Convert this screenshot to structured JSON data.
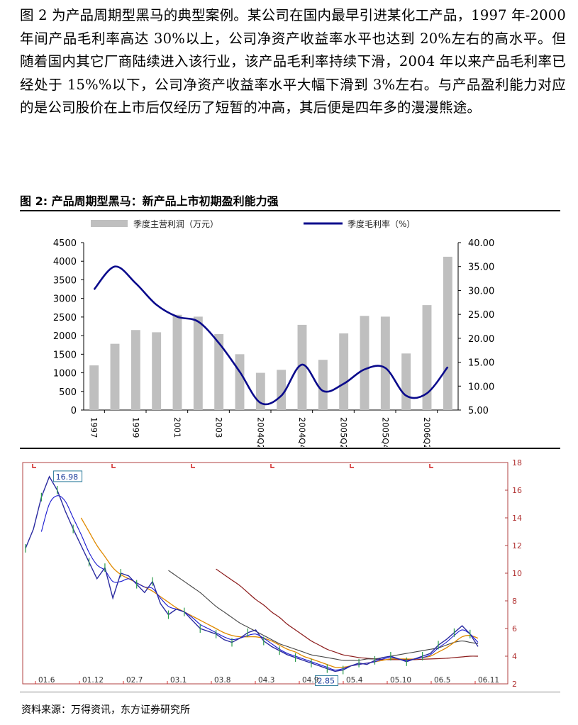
{
  "paragraph": "图 2 为产品周期型黑马的典型案例。某公司在国内最早引进某化工产品，1997 年-2000 年间产品毛利率高达 30%以上，公司净资产收益率水平也达到 20%左右的高水平。但随着国内其它厂商陆续进入该行业，该产品毛利率持续下滑，2004 年以来产品毛利率已经处于 15%%以下，公司净资产收益率水平大幅下滑到 3%左右。与产品盈利能力对应的是公司股价在上市后仅经历了短暂的冲高，其后便是四年多的漫漫熊途。",
  "figure_title": "图 2:  产品周期型黑马：新产品上市初期盈利能力强",
  "source": "资料来源：万得资讯，东方证券研究所",
  "colors": {
    "bar": "#bfbfbf",
    "line": "#0a0a8c",
    "price": "#2a2aa0"
  },
  "chart_data": [
    {
      "type": "bar",
      "series": [
        {
          "name": "季度主营利润（万元）",
          "kind": "bar",
          "axis": "left",
          "values": [
            1200,
            1780,
            2150,
            2090,
            2560,
            2510,
            2040,
            1500,
            1000,
            1080,
            2290,
            1350,
            2060,
            2530,
            2510,
            1520,
            2820,
            4120
          ]
        },
        {
          "name": "季度毛利率（%）",
          "kind": "line",
          "axis": "right",
          "values": [
            30.2,
            35.0,
            31.5,
            27.0,
            24.5,
            23.5,
            19.0,
            13.0,
            6.5,
            8.0,
            14.5,
            9.0,
            10.5,
            13.5,
            13.8,
            8.0,
            8.5,
            14.0
          ]
        }
      ],
      "x_tick_labels": [
        "1997",
        "1999",
        "2001",
        "2003",
        "2004Q2",
        "2004Q4",
        "2005Q2",
        "2005Q4",
        "2006Q2"
      ],
      "y_left_ticks": [
        "4500",
        "4000",
        "3500",
        "3000",
        "2500",
        "2000",
        "1500",
        "1000",
        "500",
        "0"
      ],
      "y_right_ticks": [
        "40.00",
        "35.00",
        "30.00",
        "25.00",
        "20.00",
        "15.00",
        "10.00",
        "5.00"
      ],
      "ylim_left": [
        0,
        4500
      ],
      "ylim_right": [
        5,
        40
      ],
      "legend_position": "top"
    },
    {
      "type": "line",
      "series": [
        {
          "name": "price",
          "values": [
            11.8,
            13.2,
            15.5,
            16.98,
            16.0,
            14.5,
            13.2,
            12.0,
            10.8,
            9.6,
            10.4,
            8.2,
            10.0,
            9.8,
            9.2,
            8.6,
            9.4,
            7.8,
            7.0,
            7.4,
            7.2,
            6.6,
            6.0,
            5.8,
            5.6,
            5.2,
            5.0,
            5.3,
            5.7,
            5.9,
            5.1,
            4.7,
            4.4,
            4.1,
            3.9,
            3.7,
            3.5,
            3.3,
            3.1,
            2.9,
            3.0,
            3.3,
            3.5,
            3.4,
            3.7,
            3.9,
            4.0,
            3.8,
            3.6,
            3.8,
            4.0,
            4.2,
            4.8,
            5.2,
            5.7,
            6.2,
            5.6,
            4.7
          ]
        },
        {
          "name": "ma_short",
          "values": [
            null,
            null,
            13.0,
            15.0,
            15.6,
            15.2,
            14.0,
            12.8,
            11.5,
            10.6,
            10.2,
            9.4,
            9.4,
            9.6,
            9.3,
            9.0,
            8.9,
            8.2,
            7.6,
            7.4,
            7.2,
            6.8,
            6.3,
            6.0,
            5.7,
            5.4,
            5.2,
            5.3,
            5.5,
            5.6,
            5.3,
            4.9,
            4.5,
            4.2,
            4.0,
            3.8,
            3.6,
            3.4,
            3.2,
            3.0,
            3.1,
            3.3,
            3.4,
            3.5,
            3.6,
            3.8,
            3.9,
            3.8,
            3.7,
            3.8,
            3.9,
            4.1,
            4.6,
            5.0,
            5.5,
            5.9,
            5.6,
            5.0
          ]
        },
        {
          "name": "ma_mid",
          "values": [
            null,
            null,
            null,
            null,
            null,
            null,
            null,
            14.0,
            13.0,
            12.0,
            11.2,
            10.4,
            9.9,
            9.6,
            9.3,
            9.0,
            8.7,
            8.3,
            7.9,
            7.5,
            7.2,
            6.9,
            6.6,
            6.3,
            6.0,
            5.7,
            5.5,
            5.4,
            5.4,
            5.4,
            5.3,
            5.1,
            4.8,
            4.5,
            4.3,
            4.0,
            3.8,
            3.6,
            3.4,
            3.2,
            3.2,
            3.3,
            3.4,
            3.5,
            3.6,
            3.7,
            3.8,
            3.8,
            3.8,
            3.8,
            3.9,
            4.0,
            4.3,
            4.6,
            5.0,
            5.4,
            5.5,
            5.3
          ]
        },
        {
          "name": "ma_long",
          "values": [
            null,
            null,
            null,
            null,
            null,
            null,
            null,
            null,
            null,
            null,
            null,
            null,
            null,
            null,
            null,
            null,
            null,
            null,
            10.2,
            9.8,
            9.4,
            9.0,
            8.6,
            8.1,
            7.6,
            7.2,
            6.8,
            6.4,
            6.1,
            5.8,
            5.5,
            5.2,
            4.9,
            4.7,
            4.5,
            4.3,
            4.1,
            4.0,
            3.9,
            3.8,
            3.7,
            3.7,
            3.7,
            3.8,
            3.8,
            3.9,
            4.0,
            4.1,
            4.2,
            4.3,
            4.4,
            4.5,
            4.6,
            4.8,
            5.0,
            5.1,
            5.0,
            4.9
          ]
        },
        {
          "name": "ma_longest",
          "values": [
            null,
            null,
            null,
            null,
            null,
            null,
            null,
            null,
            null,
            null,
            null,
            null,
            null,
            null,
            null,
            null,
            null,
            null,
            null,
            null,
            null,
            null,
            null,
            null,
            10.3,
            9.9,
            9.5,
            9.1,
            8.6,
            8.1,
            7.7,
            7.2,
            6.8,
            6.3,
            5.9,
            5.5,
            5.1,
            4.8,
            4.5,
            4.3,
            4.1,
            4.0,
            3.9,
            3.85,
            3.8,
            3.75,
            3.75,
            3.75,
            3.75,
            3.75,
            3.78,
            3.8,
            3.82,
            3.85,
            3.9,
            3.95,
            4.0,
            4.0
          ]
        }
      ],
      "x_tick_labels": [
        "01.6",
        "01.12",
        "02.7",
        "03.1",
        "03.8",
        "04.3",
        "04.9",
        "05.4",
        "05.10",
        "06.5",
        "06.11"
      ],
      "y_ticks": [
        "18",
        "16",
        "14",
        "12",
        "10",
        "8",
        "6",
        "4",
        "2"
      ],
      "ylim": [
        2,
        18
      ],
      "annotations": [
        "16.98",
        "2.85"
      ]
    }
  ]
}
